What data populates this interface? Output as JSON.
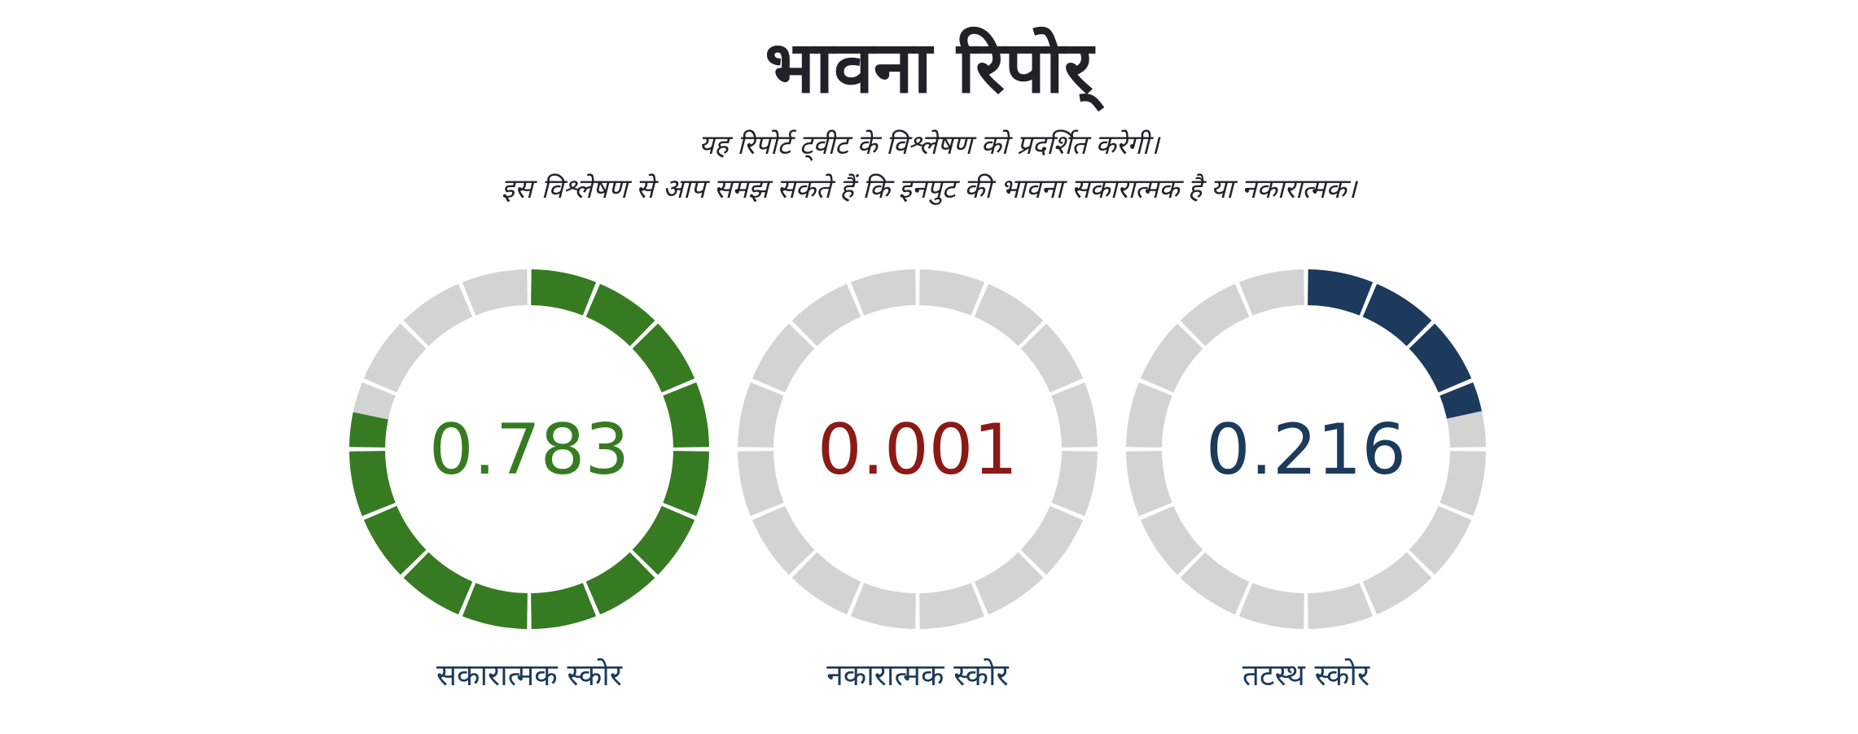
{
  "page": {
    "title": "भावना रिपोर्",
    "subtitle_line1": "यह रिपोर्ट ट्वीट के विश्लेषण को प्रदर्शित करेगी।",
    "subtitle_line2": "इस विश्लेषण से आप समझ सकते हैं कि इनपुट की भावना सकारात्मक है या नकारात्मक।"
  },
  "chart_data": {
    "type": "gauge",
    "segments": 16,
    "track_color": "#d3d3d3",
    "gauges": [
      {
        "label": "सकारात्मक स्कोर",
        "value": 0.783,
        "display": "0.783",
        "color": "#367b22"
      },
      {
        "label": "नकारात्मक स्कोर",
        "value": 0.001,
        "display": "0.001",
        "color": "#8b1a16"
      },
      {
        "label": "तटस्थ स्कोर",
        "value": 0.216,
        "display": "0.216",
        "color": "#1b3a5c"
      }
    ]
  }
}
